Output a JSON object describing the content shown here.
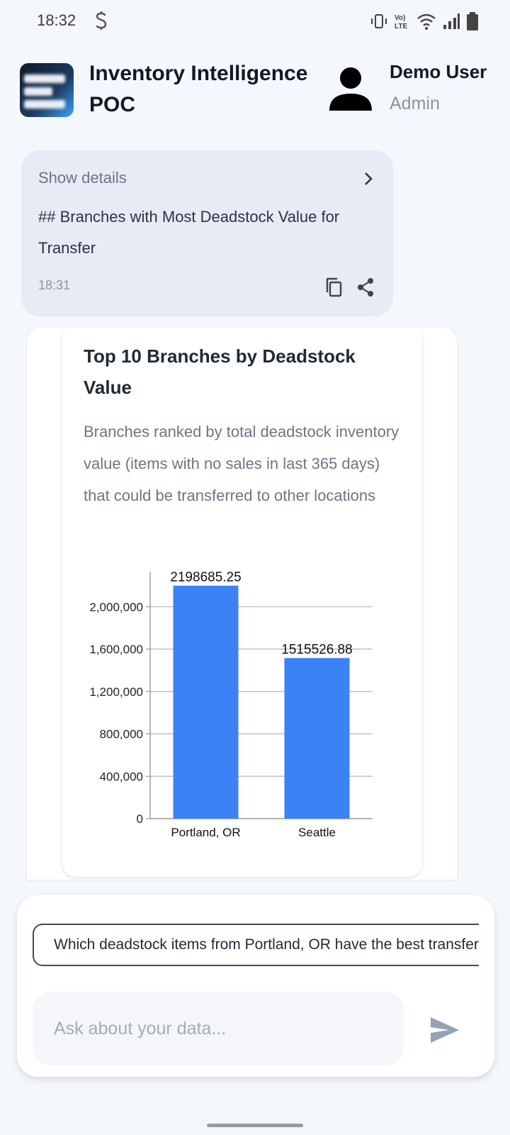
{
  "status_bar": {
    "time": "18:32",
    "icons": [
      "s-icon",
      "vibrate-icon",
      "volte-icon",
      "wifi-icon",
      "signal-icon",
      "battery-icon"
    ]
  },
  "header": {
    "title": "Inventory Intelligence POC",
    "user_name": "Demo User",
    "user_role": "Admin"
  },
  "message": {
    "show_details": "Show details",
    "text": "## Branches with Most Deadstock Value for Transfer",
    "time": "18:31"
  },
  "chart_card": {
    "title": "Top 10 Branches by Deadstock Value",
    "subtitle": "Branches ranked by total deadstock inventory value (items with no sales in last 365 days) that could be transferred to other locations"
  },
  "chart_data": {
    "type": "bar",
    "categories": [
      "Portland, OR",
      "Seattle"
    ],
    "values": [
      2198685.25,
      1515526.88
    ],
    "data_labels": [
      "2198685.25",
      "1515526.88"
    ],
    "y_ticks": [
      0,
      400000,
      800000,
      1200000,
      1600000,
      2000000
    ],
    "y_tick_labels": [
      "0",
      "400,000",
      "800,000",
      "1,200,000",
      "1,600,000",
      "2,000,000"
    ],
    "ylim": [
      0,
      2330000
    ],
    "grid": true,
    "bar_color": "#3b82f6"
  },
  "input_panel": {
    "suggestion": "Which deadstock items from Portland, OR have the best transfer opportunities?",
    "placeholder": "Ask about your data..."
  },
  "colors": {
    "accent": "#3b82f6",
    "bubble": "#e6ebf6",
    "send_icon": "#94a3b8"
  }
}
